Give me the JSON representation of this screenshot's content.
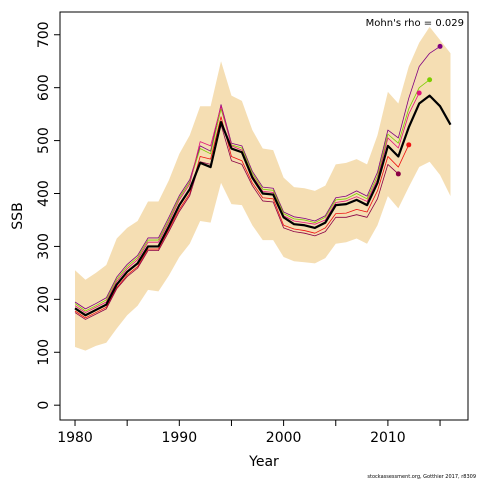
{
  "chart_data": {
    "type": "line",
    "y_label": "SSB",
    "x_label": "Year",
    "annotation": "Mohn's rho = 0.029",
    "footer": "stockassessment.org, Gotthier 2017, r8309",
    "x": [
      1980,
      1981,
      1982,
      1983,
      1984,
      1985,
      1986,
      1987,
      1988,
      1989,
      1990,
      1991,
      1992,
      1993,
      1994,
      1995,
      1996,
      1997,
      1998,
      1999,
      2000,
      2001,
      2002,
      2003,
      2004,
      2005,
      2006,
      2007,
      2008,
      2009,
      2010,
      2011,
      2012,
      2013,
      2014,
      2015,
      2016
    ],
    "xlim": [
      1978.56,
      2017.68
    ],
    "xticks": [
      1980,
      1990,
      2000,
      2010
    ],
    "xminorticks": [
      1985,
      1995,
      2005,
      2015
    ],
    "ylim": [
      -28,
      743
    ],
    "yticks": [
      0,
      100,
      200,
      300,
      400,
      500,
      600,
      700
    ],
    "band": {
      "color": "#f5deb3",
      "upper": [
        255,
        237,
        250,
        265,
        315,
        335,
        348,
        385,
        385,
        425,
        475,
        510,
        565,
        565,
        650,
        585,
        575,
        520,
        485,
        482,
        430,
        412,
        410,
        405,
        415,
        455,
        458,
        465,
        455,
        510,
        592,
        570,
        640,
        685,
        715,
        690,
        665
      ],
      "lower": [
        110,
        103,
        112,
        118,
        145,
        170,
        188,
        218,
        215,
        245,
        280,
        305,
        348,
        345,
        420,
        380,
        378,
        340,
        312,
        312,
        280,
        272,
        270,
        268,
        278,
        305,
        308,
        315,
        305,
        340,
        395,
        372,
        412,
        450,
        460,
        435,
        395
      ]
    },
    "series": [
      {
        "color": "#800080",
        "width": 0.8,
        "dot": true,
        "values": [
          195,
          182,
          192,
          203,
          242,
          266,
          283,
          316,
          316,
          355,
          396,
          426,
          490,
          480,
          568,
          495,
          490,
          442,
          412,
          410,
          365,
          356,
          353,
          348,
          358,
          392,
          395,
          405,
          395,
          440,
          520,
          505,
          580,
          640,
          665,
          678,
          null
        ]
      },
      {
        "color": "#7ccd00",
        "width": 0.8,
        "dot": true,
        "values": [
          192,
          178,
          188,
          199,
          238,
          262,
          279,
          312,
          312,
          350,
          392,
          422,
          485,
          475,
          560,
          492,
          486,
          438,
          408,
          406,
          362,
          352,
          350,
          345,
          355,
          388,
          390,
          400,
          390,
          433,
          512,
          495,
          560,
          600,
          615,
          null,
          null
        ]
      },
      {
        "color": "#e0147a",
        "width": 0.8,
        "dot": true,
        "values": [
          188,
          175,
          185,
          195,
          234,
          258,
          275,
          308,
          308,
          346,
          388,
          418,
          498,
          490,
          565,
          490,
          482,
          434,
          404,
          402,
          358,
          348,
          345,
          342,
          350,
          383,
          386,
          394,
          385,
          427,
          505,
          486,
          550,
          590,
          null,
          null,
          null
        ]
      },
      {
        "color": "#ee1111",
        "width": 0.8,
        "dot": true,
        "values": [
          178,
          165,
          175,
          185,
          222,
          246,
          262,
          295,
          295,
          332,
          370,
          400,
          470,
          465,
          545,
          470,
          462,
          420,
          392,
          390,
          340,
          333,
          330,
          325,
          335,
          362,
          363,
          370,
          365,
          405,
          470,
          450,
          492,
          null,
          null,
          null,
          null
        ]
      },
      {
        "color": "#8b0045",
        "width": 0.8,
        "dot": true,
        "values": [
          175,
          162,
          172,
          182,
          220,
          243,
          259,
          292,
          292,
          328,
          366,
          396,
          460,
          455,
          530,
          462,
          455,
          415,
          386,
          384,
          335,
          328,
          325,
          320,
          328,
          355,
          355,
          360,
          355,
          390,
          455,
          437,
          null,
          null,
          null,
          null,
          null
        ]
      },
      {
        "color": "#000000",
        "width": 2.2,
        "dot": false,
        "values": [
          183,
          170,
          180,
          190,
          228,
          252,
          268,
          300,
          300,
          338,
          378,
          408,
          458,
          450,
          535,
          485,
          478,
          430,
          400,
          398,
          355,
          342,
          340,
          335,
          345,
          378,
          380,
          388,
          378,
          420,
          490,
          470,
          525,
          570,
          585,
          565,
          530
        ]
      }
    ]
  }
}
